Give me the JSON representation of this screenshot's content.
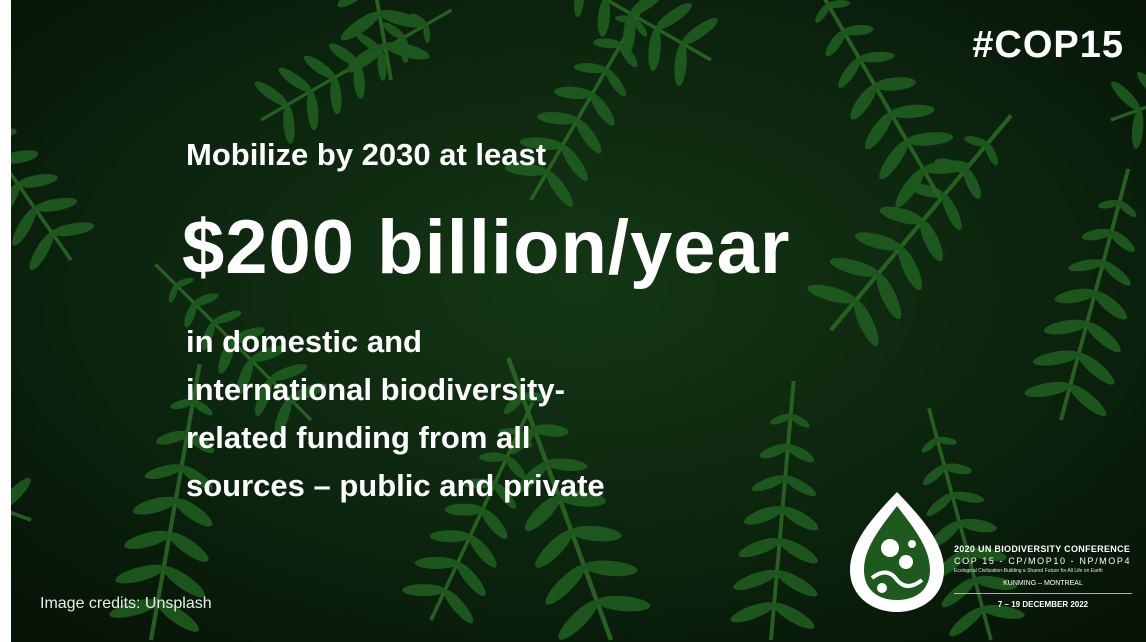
{
  "hashtag": "#COP15",
  "headline": {
    "lead": "Mobilize by 2030 at least",
    "amount": "$200 billion/year",
    "lines": [
      "in domestic and",
      "international biodiversity-",
      "related funding from all",
      "sources – public and private"
    ]
  },
  "credits": "Image credits: Unsplash",
  "conference": {
    "title": "2020 UN BIODIVERSITY CONFERENCE",
    "meetings": "COP 15 - CP/MOP10 - NP/MOP4",
    "tagline": "Ecological Civilization-Building a Shared Future for All Life on Earth",
    "cities": "KUNMING – MONTREAL",
    "dates": "7 – 19 DECEMBER 2022"
  },
  "colors": {
    "background": "#0a1f0c",
    "fern": "#2f8a2e",
    "text": "#ffffff"
  },
  "icons": {
    "logo": "cop15-logo-icon",
    "background": "fern-leaves-photo"
  }
}
